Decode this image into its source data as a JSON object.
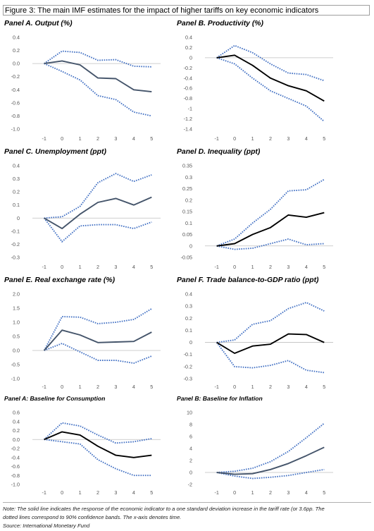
{
  "figure_title": "Figure 3: The main IMF estimates for the impact of higher tariffs on key economic indicators",
  "notes": {
    "line1": "Note: The solid line indicates the response of the economic indicator to a one standard deviation increase in the tariff rate (or 3.6pp. The",
    "line2": "dotted lines correspond to 90% confidence bands. The x-axis denotes time.",
    "source": "Source: International Monetary Fund"
  },
  "colors": {
    "solid": "#44546a",
    "solid_black": "#000000",
    "dotted": "#4472c4"
  },
  "chart_data": [
    {
      "id": "A",
      "type": "line",
      "title": "Panel A. Output (%)",
      "x": [
        -1,
        0,
        1,
        2,
        3,
        4,
        5
      ],
      "ylim": [
        -1.0,
        0.4
      ],
      "yticks": [
        "0.4",
        "0.2",
        "0.0",
        "-0.2",
        "-0.4",
        "-0.6",
        "-0.8",
        "-1.0"
      ],
      "yticks_values": [
        0.4,
        0.2,
        0.0,
        -0.2,
        -0.4,
        -0.6,
        -0.8,
        -1.0
      ],
      "solid_color": "#44546a",
      "series": [
        {
          "role": "estimate",
          "values": [
            0.0,
            0.04,
            -0.02,
            -0.22,
            -0.23,
            -0.4,
            -0.43
          ]
        },
        {
          "role": "upper",
          "values": [
            0.0,
            0.19,
            0.17,
            0.05,
            0.06,
            -0.04,
            -0.05
          ]
        },
        {
          "role": "lower",
          "values": [
            0.0,
            -0.12,
            -0.25,
            -0.49,
            -0.55,
            -0.74,
            -0.8
          ]
        }
      ]
    },
    {
      "id": "B",
      "type": "line",
      "title": "Panel B. Productivity (%)",
      "x": [
        -1,
        0,
        1,
        2,
        3,
        4,
        5
      ],
      "ylim": [
        -1.4,
        0.4
      ],
      "yticks": [
        "0.4",
        "0.2",
        "0",
        "-0.2",
        "-0.4",
        "-0.6",
        "-0.8",
        "-1",
        "-1.2",
        "-1.4"
      ],
      "yticks_values": [
        0.4,
        0.2,
        0,
        -0.2,
        -0.4,
        -0.6,
        -0.8,
        -1.0,
        -1.2,
        -1.4
      ],
      "solid_color": "#000000",
      "series": [
        {
          "role": "estimate",
          "values": [
            0.0,
            0.05,
            -0.15,
            -0.4,
            -0.55,
            -0.65,
            -0.85
          ]
        },
        {
          "role": "upper",
          "values": [
            0.0,
            0.24,
            0.1,
            -0.12,
            -0.3,
            -0.33,
            -0.45
          ]
        },
        {
          "role": "lower",
          "values": [
            0.0,
            -0.12,
            -0.4,
            -0.65,
            -0.8,
            -0.95,
            -1.25
          ]
        }
      ]
    },
    {
      "id": "C",
      "type": "line",
      "title": "Panel C. Unemployment (ppt)",
      "x": [
        -1,
        0,
        1,
        2,
        3,
        4,
        5
      ],
      "ylim": [
        -0.3,
        0.4
      ],
      "yticks": [
        "0.4",
        "0.3",
        "0.2",
        "0.1",
        "0",
        "-0.1",
        "-0.2",
        "-0.3"
      ],
      "yticks_values": [
        0.4,
        0.3,
        0.2,
        0.1,
        0,
        -0.1,
        -0.2,
        -0.3
      ],
      "solid_color": "#44546a",
      "series": [
        {
          "role": "estimate",
          "values": [
            0.0,
            -0.08,
            0.03,
            0.12,
            0.15,
            0.1,
            0.16
          ]
        },
        {
          "role": "upper",
          "values": [
            0.0,
            0.01,
            0.09,
            0.27,
            0.34,
            0.28,
            0.33
          ]
        },
        {
          "role": "lower",
          "values": [
            0.0,
            -0.18,
            -0.06,
            -0.05,
            -0.05,
            -0.08,
            -0.03
          ]
        }
      ]
    },
    {
      "id": "D",
      "type": "line",
      "title": "Panel D. Inequality (ppt)",
      "x": [
        -1,
        0,
        1,
        2,
        3,
        4,
        5
      ],
      "ylim": [
        -0.05,
        0.35
      ],
      "yticks": [
        "0.35",
        "0.3",
        "0.25",
        "0.2",
        "0.15",
        "0.1",
        "0.05",
        "0",
        "-0.05"
      ],
      "yticks_values": [
        0.35,
        0.3,
        0.25,
        0.2,
        0.15,
        0.1,
        0.05,
        0,
        -0.05
      ],
      "solid_color": "#000000",
      "series": [
        {
          "role": "estimate",
          "values": [
            0.0,
            0.01,
            0.05,
            0.08,
            0.135,
            0.125,
            0.145
          ]
        },
        {
          "role": "upper",
          "values": [
            0.0,
            0.03,
            0.1,
            0.16,
            0.24,
            0.245,
            0.29
          ]
        },
        {
          "role": "lower",
          "values": [
            0.0,
            -0.015,
            -0.01,
            0.01,
            0.03,
            0.005,
            0.01
          ]
        }
      ]
    },
    {
      "id": "E",
      "type": "line",
      "title": "Panel E. Real exchange rate (%)",
      "x": [
        -1,
        0,
        1,
        2,
        3,
        4,
        5
      ],
      "ylim": [
        -1.0,
        2.0
      ],
      "yticks": [
        "2.0",
        "1.5",
        "1.0",
        "0.5",
        "0.0",
        "-0.5",
        "-1.0"
      ],
      "yticks_values": [
        2.0,
        1.5,
        1.0,
        0.5,
        0.0,
        -0.5,
        -1.0
      ],
      "solid_color": "#44546a",
      "series": [
        {
          "role": "estimate",
          "values": [
            0.0,
            0.72,
            0.55,
            0.28,
            0.3,
            0.32,
            0.65
          ]
        },
        {
          "role": "upper",
          "values": [
            0.0,
            1.2,
            1.18,
            0.95,
            1.0,
            1.1,
            1.48
          ]
        },
        {
          "role": "lower",
          "values": [
            0.0,
            0.25,
            -0.05,
            -0.35,
            -0.35,
            -0.45,
            -0.2
          ]
        }
      ]
    },
    {
      "id": "F",
      "type": "line",
      "title": "Panel F. Trade balance-to-GDP ratio (ppt)",
      "x": [
        -1,
        0,
        1,
        2,
        3,
        4,
        5
      ],
      "ylim": [
        -0.3,
        0.4
      ],
      "yticks": [
        "0.4",
        "0.3",
        "0.2",
        "0.1",
        "0",
        "-0.1",
        "-0.2",
        "-0.3"
      ],
      "yticks_values": [
        0.4,
        0.3,
        0.2,
        0.1,
        0,
        -0.1,
        -0.2,
        -0.3
      ],
      "solid_color": "#000000",
      "series": [
        {
          "role": "estimate",
          "values": [
            0.0,
            -0.09,
            -0.03,
            -0.015,
            0.07,
            0.065,
            0.0
          ]
        },
        {
          "role": "upper",
          "values": [
            0.0,
            0.02,
            0.15,
            0.18,
            0.28,
            0.33,
            0.26
          ]
        },
        {
          "role": "lower",
          "values": [
            0.0,
            -0.2,
            -0.21,
            -0.19,
            -0.15,
            -0.23,
            -0.25
          ]
        }
      ]
    },
    {
      "id": "G",
      "type": "line",
      "title": "Panel A: Baseline for Consumption",
      "x": [
        -1,
        0,
        1,
        2,
        3,
        4,
        5
      ],
      "ylim": [
        -1.0,
        0.6
      ],
      "yticks": [
        "0.6",
        "0.4",
        "0.2",
        "0.0",
        "-0.2",
        "-0.4",
        "-0.6",
        "-0.8",
        "-1.0"
      ],
      "yticks_values": [
        0.6,
        0.4,
        0.2,
        0.0,
        -0.2,
        -0.4,
        -0.6,
        -0.8,
        -1.0
      ],
      "solid_color": "#000000",
      "series": [
        {
          "role": "estimate",
          "values": [
            0.0,
            0.17,
            0.1,
            -0.15,
            -0.35,
            -0.4,
            -0.35
          ]
        },
        {
          "role": "upper",
          "values": [
            0.0,
            0.37,
            0.3,
            0.1,
            -0.08,
            -0.05,
            0.02
          ]
        },
        {
          "role": "lower",
          "values": [
            0.0,
            -0.05,
            -0.1,
            -0.45,
            -0.65,
            -0.8,
            -0.8
          ]
        }
      ]
    },
    {
      "id": "H",
      "type": "line",
      "title": "Panel B: Baseline for Inflation",
      "x": [
        -1,
        0,
        1,
        2,
        3,
        4,
        5
      ],
      "ylim": [
        -2,
        10
      ],
      "yticks": [
        "10",
        "8",
        "6",
        "4",
        "2",
        "0",
        "-2"
      ],
      "yticks_values": [
        10,
        8,
        6,
        4,
        2,
        0,
        -2
      ],
      "solid_color": "#44546a",
      "series": [
        {
          "role": "estimate",
          "values": [
            0.0,
            -0.3,
            -0.2,
            0.5,
            1.5,
            2.8,
            4.2
          ]
        },
        {
          "role": "upper",
          "values": [
            0.0,
            0.2,
            0.7,
            1.8,
            3.5,
            5.8,
            8.2
          ]
        },
        {
          "role": "lower",
          "values": [
            0.0,
            -0.6,
            -1.0,
            -0.8,
            -0.5,
            0.0,
            0.5
          ]
        }
      ]
    }
  ]
}
